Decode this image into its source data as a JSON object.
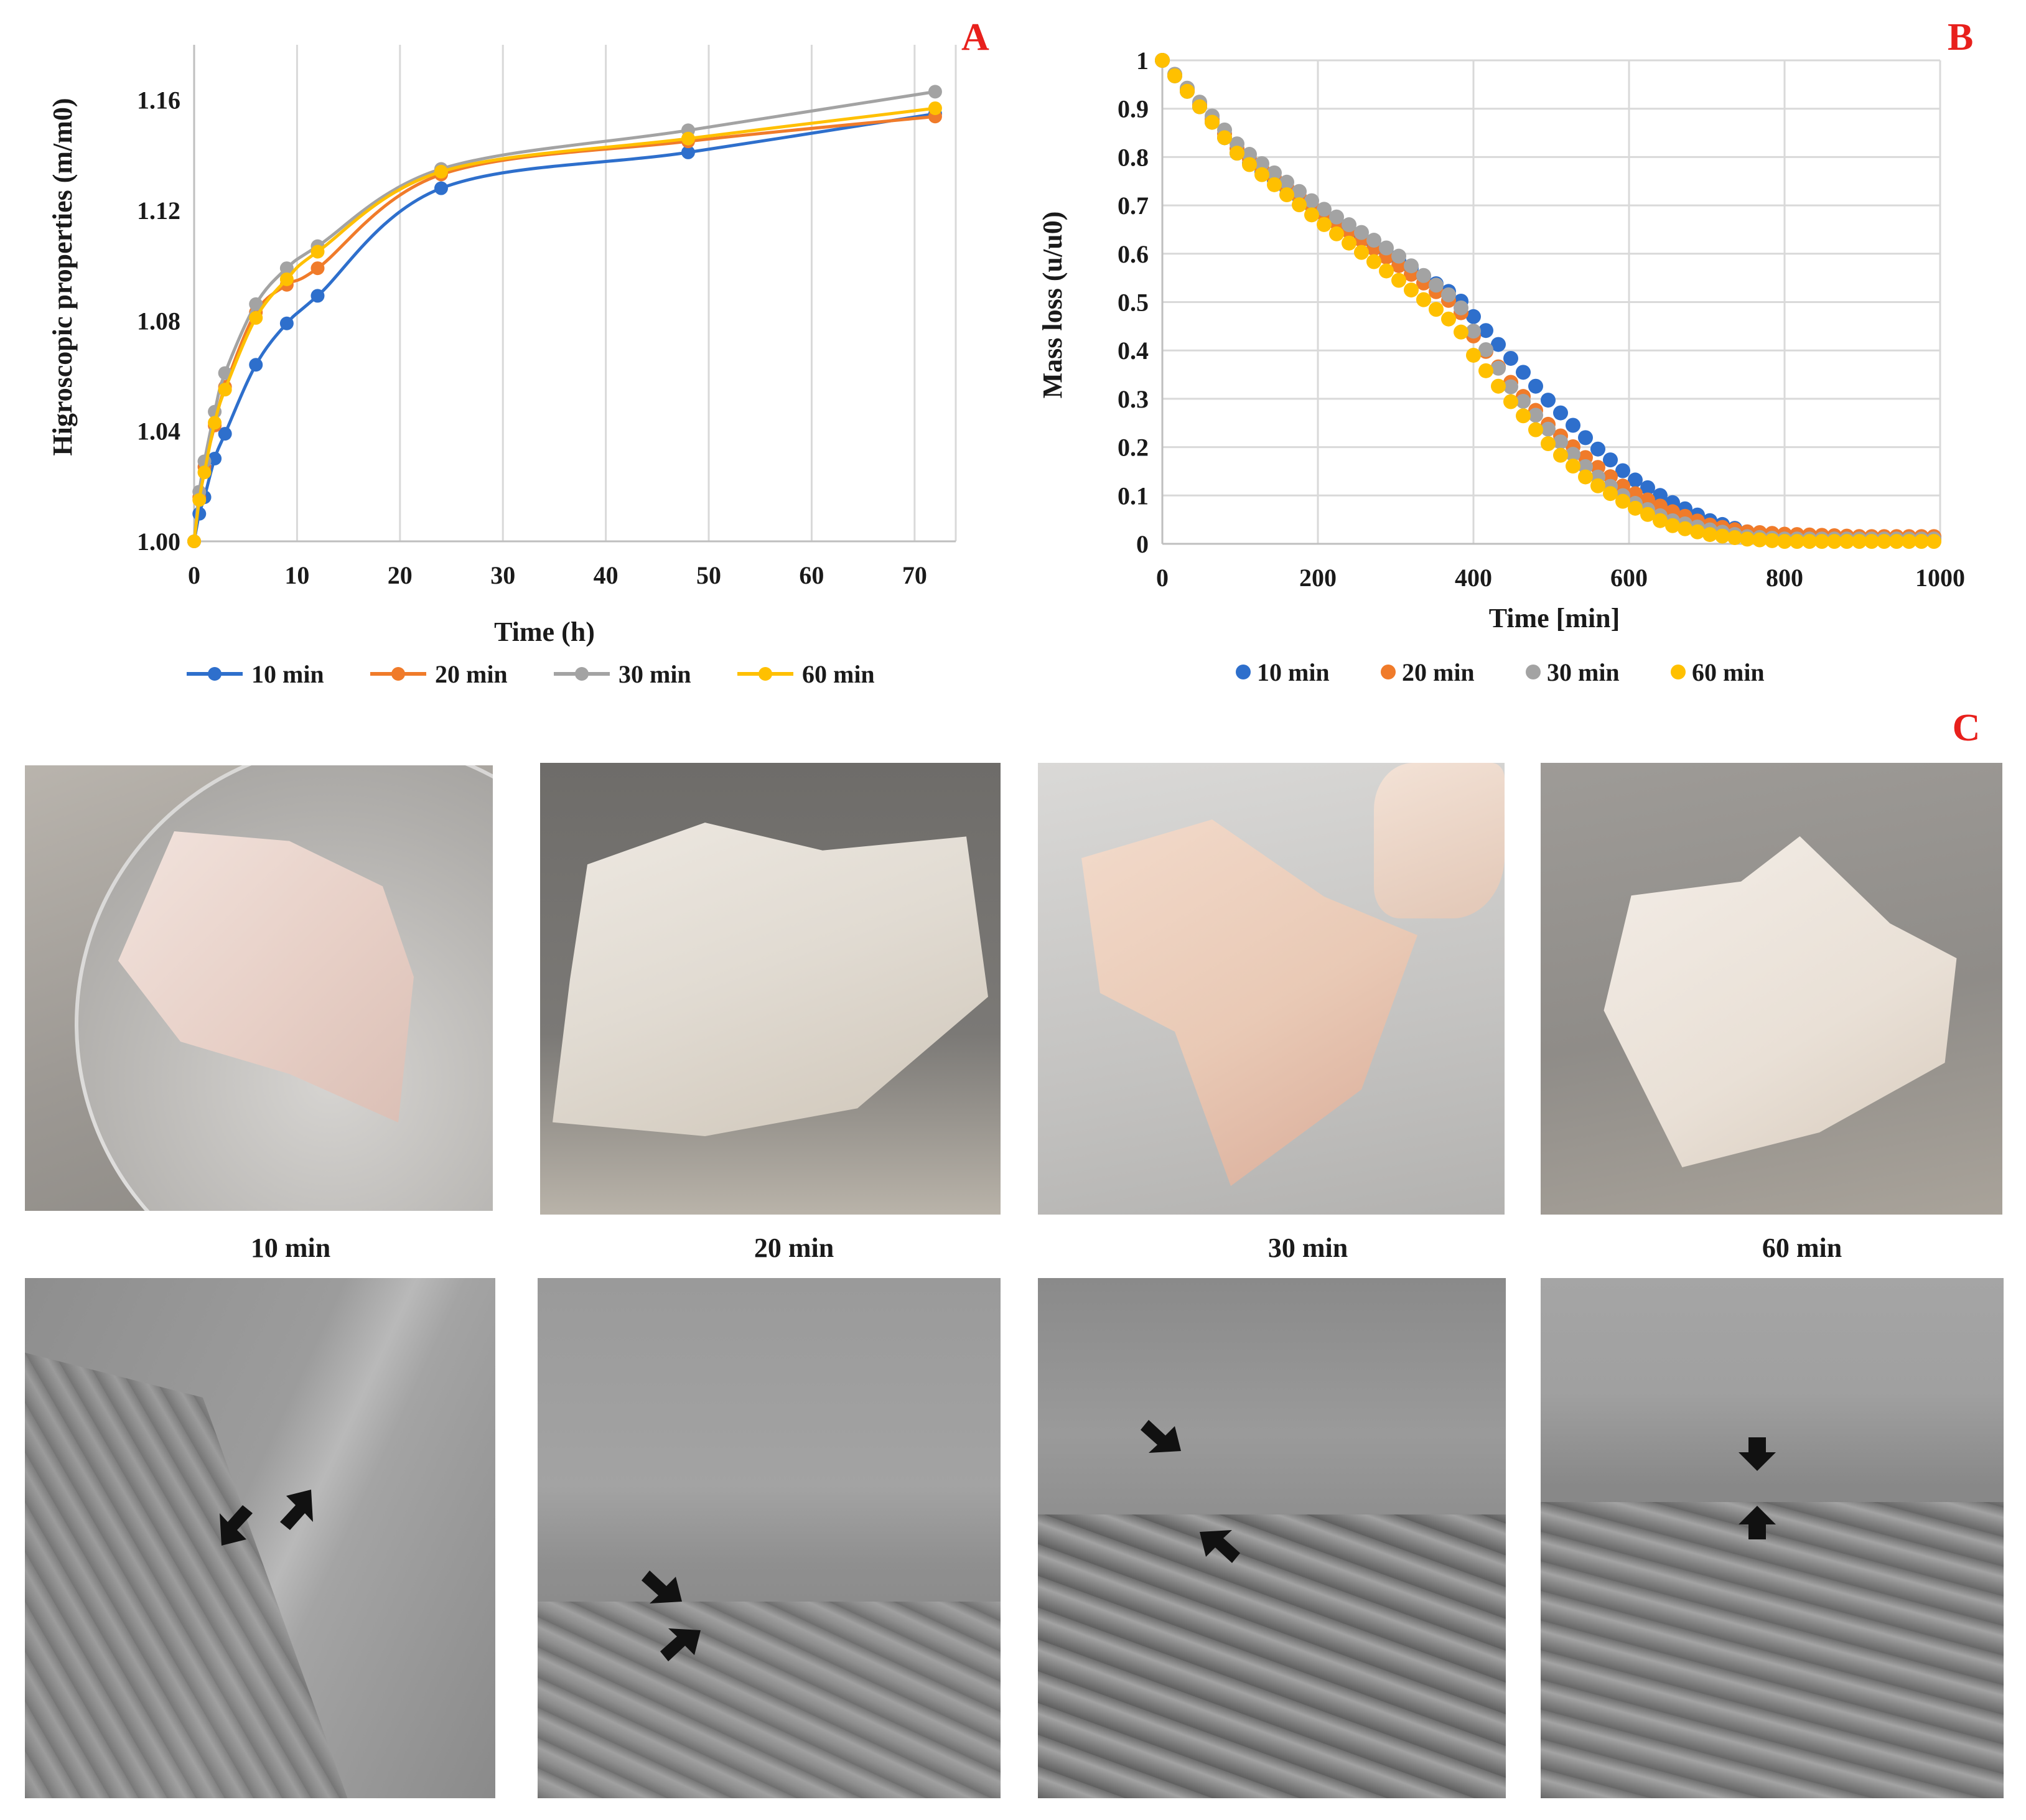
{
  "panel_letters": {
    "a": "A",
    "b": "B",
    "c": "C"
  },
  "chart_data": [
    {
      "type": "line",
      "panel": "A",
      "xlabel": "Time (h)",
      "ylabel": "Higroscopic properties (m/m0)",
      "xlim": [
        0,
        74
      ],
      "ylim": [
        1.0,
        1.18
      ],
      "xticks": [
        0,
        10,
        20,
        30,
        40,
        50,
        60,
        70
      ],
      "yticks": [
        1.0,
        1.04,
        1.08,
        1.12,
        1.16
      ],
      "ytick_labels": [
        "1.00",
        "1.04",
        "1.08",
        "1.12",
        "1.16"
      ],
      "grid": "vertical",
      "legend_position": "bottom",
      "series": [
        {
          "name": "10 min",
          "color": "#2e6fcc",
          "x": [
            0,
            0.5,
            1,
            2,
            3,
            6,
            9,
            12,
            24,
            48,
            72
          ],
          "y": [
            1.0,
            1.01,
            1.016,
            1.03,
            1.039,
            1.064,
            1.079,
            1.089,
            1.128,
            1.141,
            1.155
          ]
        },
        {
          "name": "20 min",
          "color": "#f07b2a",
          "x": [
            0,
            0.5,
            1,
            2,
            3,
            6,
            9,
            12,
            24,
            48,
            72
          ],
          "y": [
            1.0,
            1.016,
            1.027,
            1.042,
            1.056,
            1.083,
            1.093,
            1.099,
            1.133,
            1.145,
            1.154
          ]
        },
        {
          "name": "30 min",
          "color": "#a3a3a3",
          "x": [
            0,
            0.5,
            1,
            2,
            3,
            6,
            9,
            12,
            24,
            48,
            72
          ],
          "y": [
            1.0,
            1.018,
            1.029,
            1.047,
            1.061,
            1.086,
            1.099,
            1.107,
            1.135,
            1.149,
            1.163
          ]
        },
        {
          "name": "60 min",
          "color": "#ffc000",
          "x": [
            0,
            0.5,
            1,
            2,
            3,
            6,
            9,
            12,
            24,
            48,
            72
          ],
          "y": [
            1.0,
            1.015,
            1.025,
            1.043,
            1.055,
            1.081,
            1.095,
            1.105,
            1.134,
            1.146,
            1.157
          ]
        }
      ]
    },
    {
      "type": "scatter",
      "panel": "B",
      "xlabel": "Time [min]",
      "ylabel": "Mass loss (u/u0)",
      "xlim": [
        0,
        1000
      ],
      "ylim": [
        0,
        1
      ],
      "xticks": [
        0,
        200,
        400,
        600,
        800,
        1000
      ],
      "yticks": [
        0,
        0.1,
        0.2,
        0.3,
        0.4,
        0.5,
        0.6,
        0.7,
        0.8,
        0.9,
        1
      ],
      "ytick_labels": [
        "0",
        "0.1",
        "0.2",
        "0.3",
        "0.4",
        "0.5",
        "0.6",
        "0.7",
        "0.8",
        "0.9",
        "1"
      ],
      "grid": "both",
      "legend_position": "bottom",
      "series": [
        {
          "name": "10 min",
          "color": "#2e6fcc",
          "x": [
            0,
            100,
            200,
            300,
            380,
            400,
            450,
            500,
            550,
            600,
            650,
            700,
            750,
            800,
            900,
            1000
          ],
          "y": [
            1.0,
            0.8,
            0.69,
            0.59,
            0.51,
            0.47,
            0.38,
            0.29,
            0.21,
            0.14,
            0.09,
            0.05,
            0.025,
            0.015,
            0.01,
            0.01
          ]
        },
        {
          "name": "20 min",
          "color": "#f07b2a",
          "x": [
            0,
            100,
            200,
            300,
            380,
            400,
            450,
            500,
            550,
            600,
            650,
            700,
            750,
            800,
            900,
            1000
          ],
          "y": [
            1.0,
            0.81,
            0.69,
            0.58,
            0.49,
            0.43,
            0.33,
            0.24,
            0.17,
            0.11,
            0.07,
            0.04,
            0.025,
            0.02,
            0.015,
            0.015
          ]
        },
        {
          "name": "30 min",
          "color": "#a3a3a3",
          "x": [
            0,
            100,
            200,
            300,
            380,
            400,
            450,
            500,
            550,
            600,
            650,
            700,
            750,
            800,
            900,
            1000
          ],
          "y": [
            1.0,
            0.82,
            0.7,
            0.6,
            0.5,
            0.44,
            0.32,
            0.23,
            0.15,
            0.09,
            0.05,
            0.03,
            0.015,
            0.01,
            0.01,
            0.01
          ]
        },
        {
          "name": "60 min",
          "color": "#ffc000",
          "x": [
            0,
            100,
            200,
            300,
            380,
            400,
            450,
            500,
            550,
            600,
            650,
            700,
            750,
            800,
            900,
            1000
          ],
          "y": [
            1.0,
            0.8,
            0.67,
            0.55,
            0.45,
            0.39,
            0.29,
            0.2,
            0.13,
            0.08,
            0.04,
            0.02,
            0.01,
            0.005,
            0.005,
            0.005
          ]
        }
      ]
    }
  ],
  "photos": {
    "captions": [
      "10 min",
      "20 min",
      "30 min",
      "60 min"
    ]
  }
}
